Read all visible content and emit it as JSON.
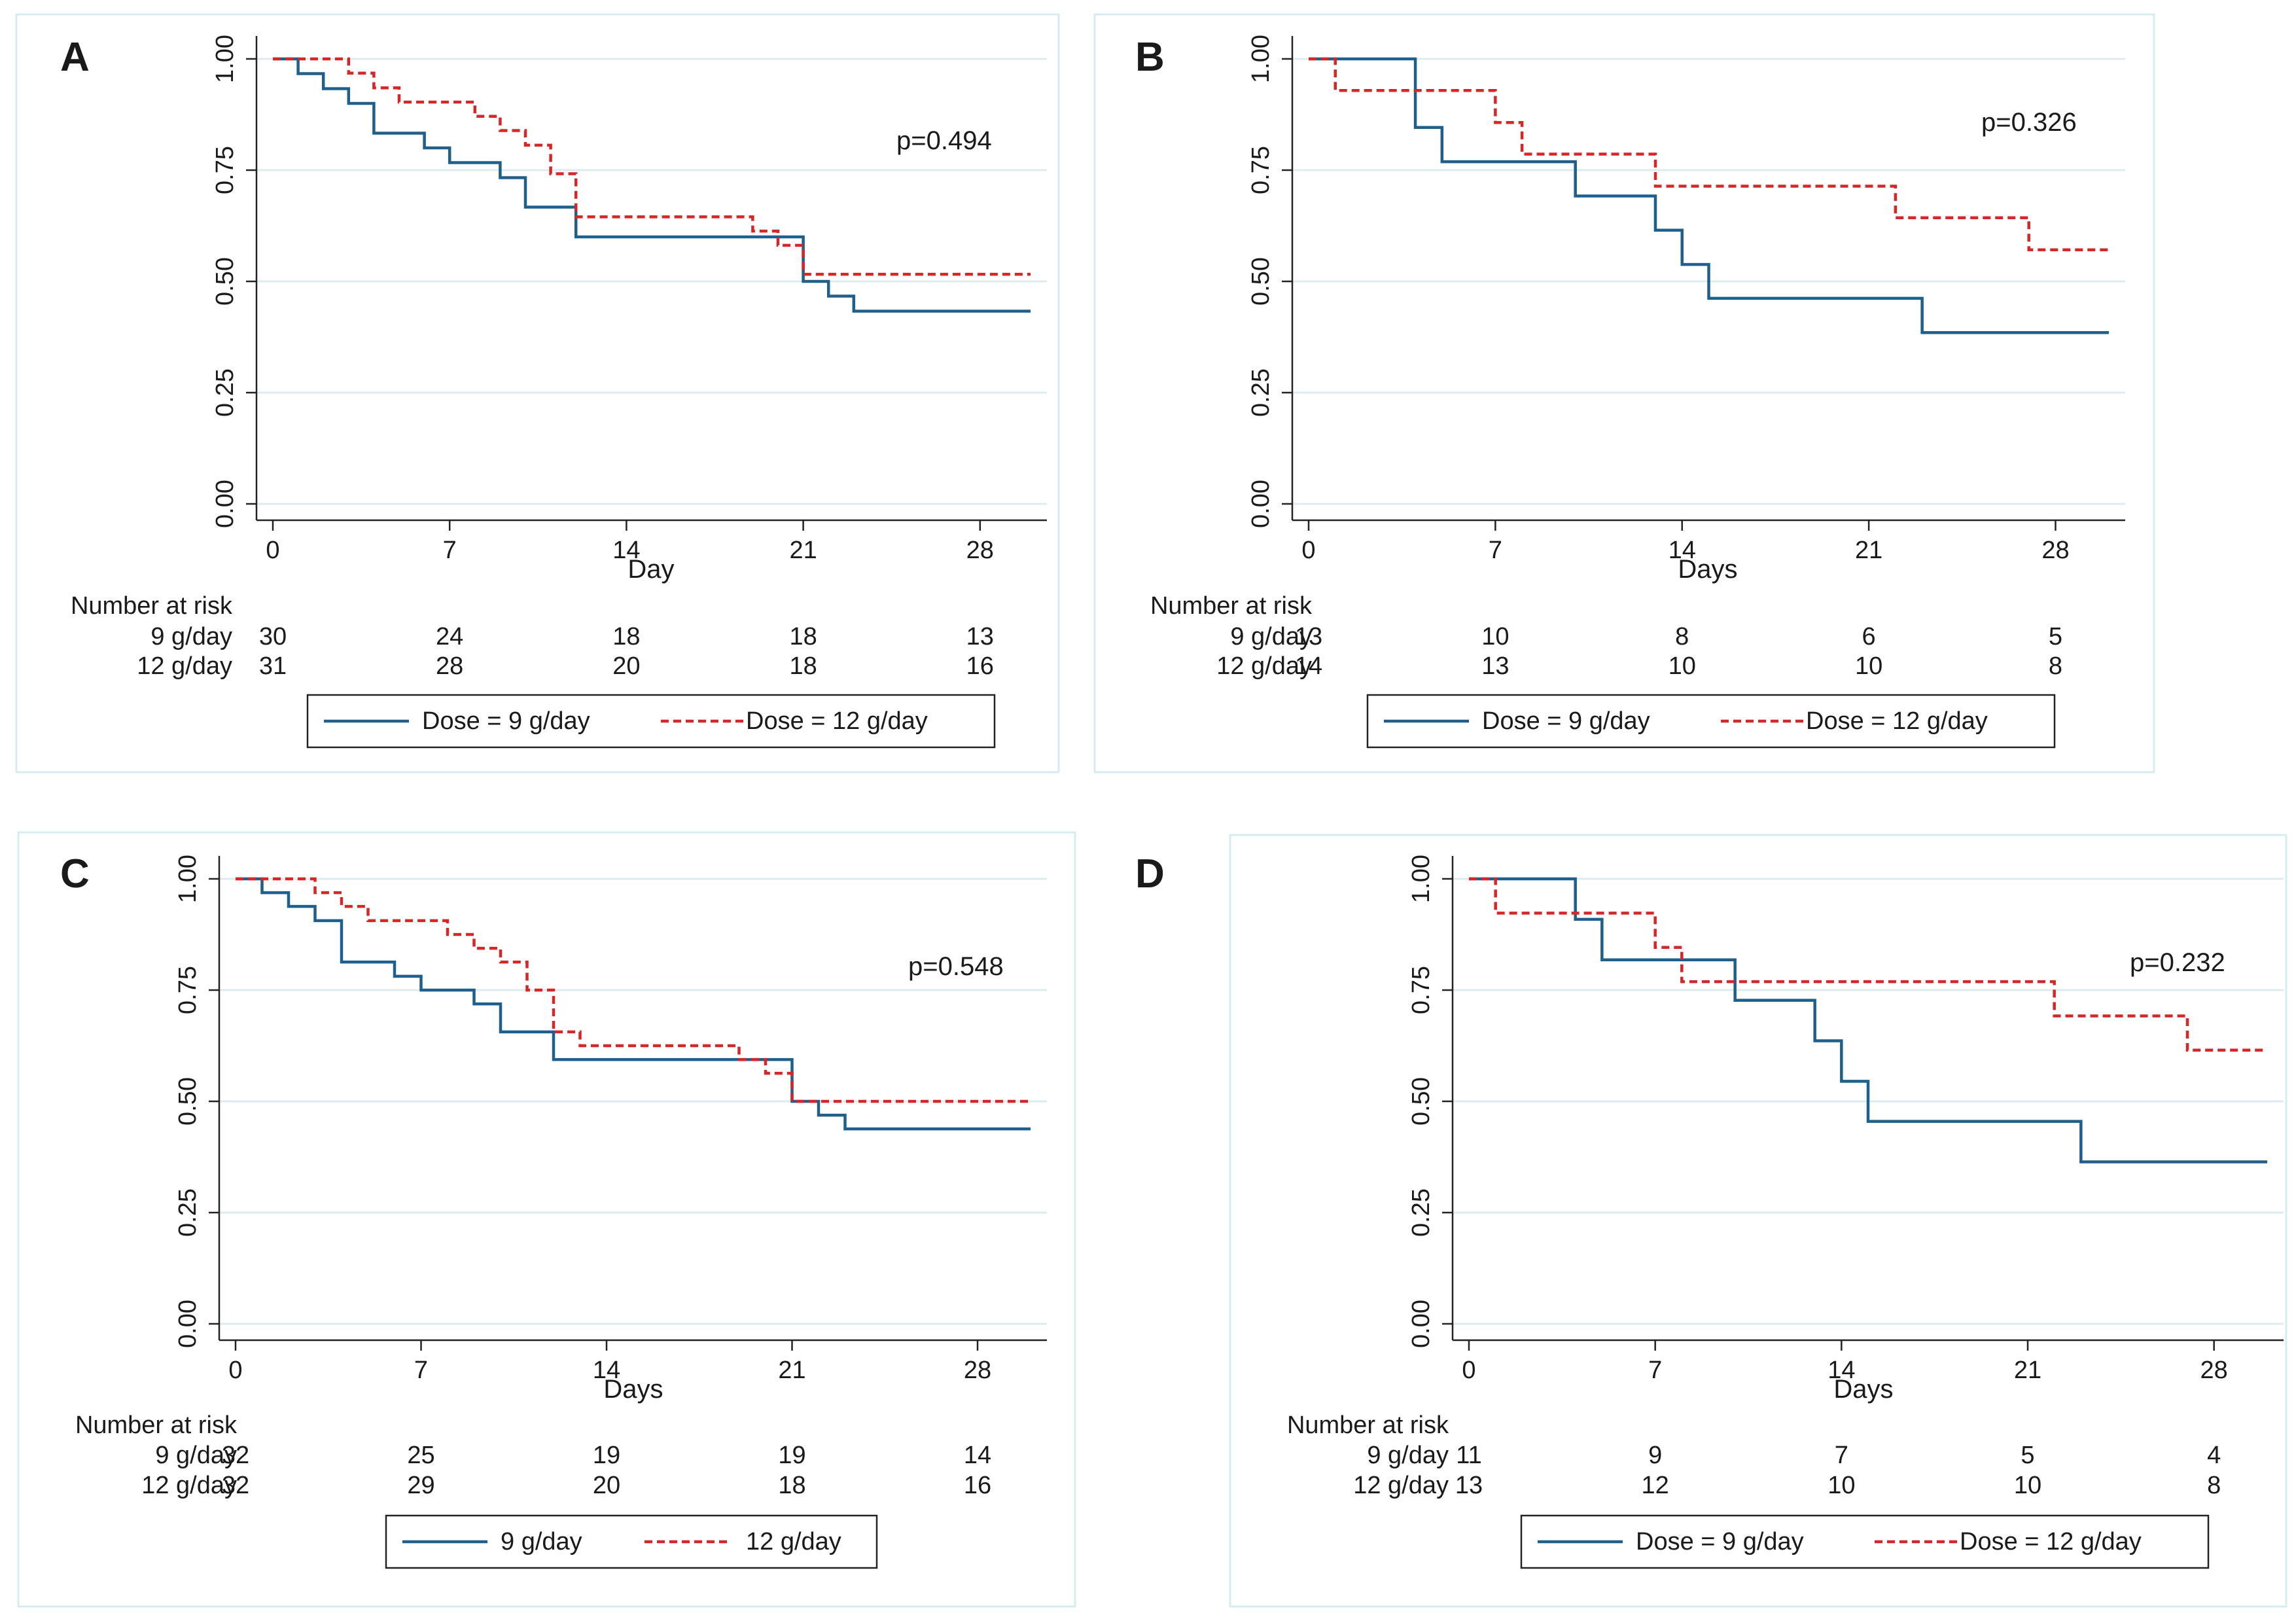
{
  "figure": {
    "panel_count": 4,
    "colors": {
      "series_9": "#1f5f8b",
      "series_12": "#d62728",
      "grid": "#dcecee",
      "panel_border": "#d6ecef",
      "axis": "#222222"
    }
  },
  "chart_data": [
    {
      "type": "line",
      "panel_label": "A",
      "xlabel": "Day",
      "ylabel": "",
      "xlim": [
        0,
        30
      ],
      "ylim": [
        0,
        1
      ],
      "xticks": [
        "0",
        "7",
        "14",
        "21",
        "28"
      ],
      "yticks": [
        "0.00",
        "0.25",
        "0.50",
        "0.75",
        "1.00"
      ],
      "grid": true,
      "p_value": "p=0.494",
      "risk_table": {
        "title": "Number at risk",
        "rows": [
          {
            "label": "9 g/day",
            "counts": [
              "30",
              "24",
              "18",
              "18",
              "13"
            ]
          },
          {
            "label": "12 g/day",
            "counts": [
              "31",
              "28",
              "20",
              "18",
              "16"
            ]
          }
        ]
      },
      "legend": [
        "Dose = 9 g/day",
        "Dose = 12 g/day"
      ],
      "legend_position": "bottom",
      "series": [
        {
          "name": "Dose = 9 g/day",
          "style": "solid",
          "x": [
            0,
            1,
            2,
            3,
            4,
            6,
            7,
            9,
            10,
            12,
            21,
            22,
            23,
            30
          ],
          "y": [
            1.0,
            0.967,
            0.933,
            0.9,
            0.833,
            0.8,
            0.767,
            0.733,
            0.667,
            0.6,
            0.5,
            0.467,
            0.433,
            0.433
          ]
        },
        {
          "name": "Dose = 12 g/day",
          "style": "dashed",
          "x": [
            0,
            3,
            4,
            5,
            8,
            9,
            10,
            11,
            12,
            19,
            20,
            21,
            30
          ],
          "y": [
            1.0,
            0.968,
            0.935,
            0.903,
            0.871,
            0.839,
            0.806,
            0.742,
            0.645,
            0.613,
            0.581,
            0.516,
            0.516
          ]
        }
      ]
    },
    {
      "type": "line",
      "panel_label": "B",
      "xlabel": "Days",
      "ylabel": "",
      "xlim": [
        0,
        30
      ],
      "ylim": [
        0,
        1
      ],
      "xticks": [
        "0",
        "7",
        "14",
        "21",
        "28"
      ],
      "yticks": [
        "0.00",
        "0.25",
        "0.50",
        "0.75",
        "1.00"
      ],
      "grid": true,
      "p_value": "p=0.326",
      "risk_table": {
        "title": "Number at risk",
        "rows": [
          {
            "label": "9 g/day",
            "counts": [
              "13",
              "10",
              "8",
              "6",
              "5"
            ]
          },
          {
            "label": "12 g/day",
            "counts": [
              "14",
              "13",
              "10",
              "10",
              "8"
            ]
          }
        ]
      },
      "legend": [
        "Dose = 9 g/day",
        "Dose = 12 g/day"
      ],
      "legend_position": "bottom",
      "series": [
        {
          "name": "Dose = 9 g/day",
          "style": "solid",
          "x": [
            0,
            4,
            5,
            10,
            13,
            14,
            15,
            23,
            30
          ],
          "y": [
            1.0,
            0.846,
            0.769,
            0.692,
            0.615,
            0.538,
            0.462,
            0.385,
            0.385
          ]
        },
        {
          "name": "Dose = 12 g/day",
          "style": "dashed",
          "x": [
            0,
            1,
            7,
            8,
            13,
            22,
            27,
            30
          ],
          "y": [
            1.0,
            0.929,
            0.857,
            0.786,
            0.714,
            0.643,
            0.571,
            0.571
          ]
        }
      ]
    },
    {
      "type": "line",
      "panel_label": "C",
      "xlabel": "Days",
      "ylabel": "",
      "xlim": [
        0,
        30
      ],
      "ylim": [
        0,
        1
      ],
      "xticks": [
        "0",
        "7",
        "14",
        "21",
        "28"
      ],
      "yticks": [
        "0.00",
        "0.25",
        "0.50",
        "0.75",
        "1.00"
      ],
      "grid": true,
      "p_value": "p=0.548",
      "risk_table": {
        "title": "Number at risk",
        "rows": [
          {
            "label": "9 g/day",
            "counts": [
              "32",
              "25",
              "19",
              "19",
              "14"
            ]
          },
          {
            "label": "12 g/day",
            "counts": [
              "32",
              "29",
              "20",
              "18",
              "16"
            ]
          }
        ]
      },
      "legend": [
        "9 g/day",
        "12 g/day"
      ],
      "legend_position": "bottom",
      "series": [
        {
          "name": "9 g/day",
          "style": "solid",
          "x": [
            0,
            1,
            2,
            3,
            4,
            6,
            7,
            9,
            10,
            12,
            21,
            22,
            23,
            30
          ],
          "y": [
            1.0,
            0.969,
            0.938,
            0.906,
            0.813,
            0.781,
            0.75,
            0.719,
            0.656,
            0.594,
            0.5,
            0.469,
            0.438,
            0.438
          ]
        },
        {
          "name": "12 g/day",
          "style": "dashed",
          "x": [
            0,
            3,
            4,
            5,
            8,
            9,
            10,
            11,
            12,
            13,
            19,
            20,
            21,
            30
          ],
          "y": [
            1.0,
            0.969,
            0.938,
            0.906,
            0.875,
            0.844,
            0.813,
            0.75,
            0.656,
            0.625,
            0.594,
            0.563,
            0.5,
            0.5
          ]
        }
      ]
    },
    {
      "type": "line",
      "panel_label": "D",
      "xlabel": "Days",
      "ylabel": "",
      "xlim": [
        0,
        30
      ],
      "ylim": [
        0,
        1
      ],
      "xticks": [
        "0",
        "7",
        "14",
        "21",
        "28"
      ],
      "yticks": [
        "0.00",
        "0.25",
        "0.50",
        "0.75",
        "1.00"
      ],
      "grid": true,
      "p_value": "p=0.232",
      "risk_table": {
        "title": "Number at risk",
        "rows": [
          {
            "label": "9 g/day",
            "counts": [
              "11",
              "9",
              "7",
              "5",
              "4"
            ]
          },
          {
            "label": "12 g/day",
            "counts": [
              "13",
              "12",
              "10",
              "10",
              "8"
            ]
          }
        ]
      },
      "legend": [
        "Dose = 9 g/day",
        "Dose = 12 g/day"
      ],
      "legend_position": "bottom",
      "series": [
        {
          "name": "Dose = 9 g/day",
          "style": "solid",
          "x": [
            0,
            4,
            5,
            10,
            13,
            14,
            15,
            23,
            30
          ],
          "y": [
            1.0,
            0.909,
            0.818,
            0.727,
            0.636,
            0.545,
            0.455,
            0.364,
            0.364
          ]
        },
        {
          "name": "Dose = 12 g/day",
          "style": "dashed",
          "x": [
            0,
            1,
            7,
            8,
            22,
            27,
            30
          ],
          "y": [
            1.0,
            0.923,
            0.846,
            0.769,
            0.692,
            0.615,
            0.615
          ]
        }
      ]
    }
  ]
}
